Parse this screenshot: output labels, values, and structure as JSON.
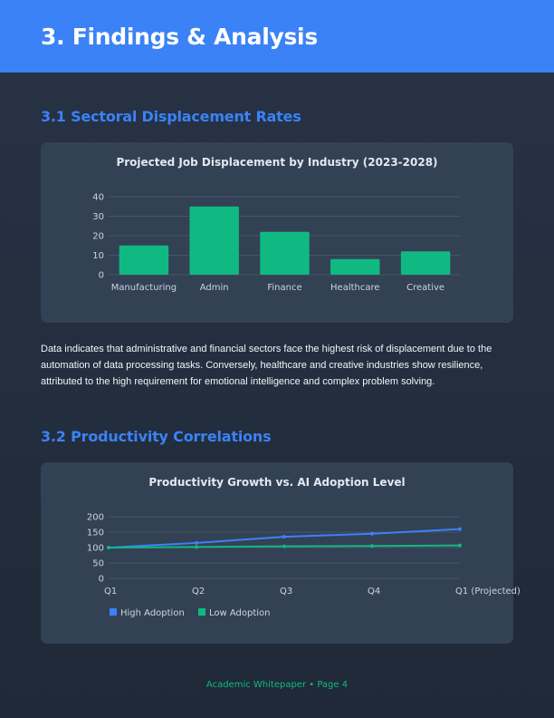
{
  "header": {
    "title": "3. Findings & Analysis"
  },
  "section1": {
    "heading": "3.1 Sectoral Displacement Rates",
    "body": "Data indicates that administrative and financial sectors face the highest risk of displacement due to the automation of data processing tasks. Conversely, healthcare and creative industries show resilience, attributed to the high requirement for emotional intelligence and complex problem solving."
  },
  "section2": {
    "heading": "3.2 Productivity Correlations"
  },
  "footer": {
    "text": "Academic Whitepaper • Page 4"
  },
  "colors": {
    "accent": "#3b82f6",
    "green": "#10b981"
  },
  "chart_data": [
    {
      "type": "bar",
      "title": "Projected Job Displacement by Industry (2023-2028)",
      "categories": [
        "Manufacturing",
        "Admin",
        "Finance",
        "Healthcare",
        "Creative"
      ],
      "values": [
        15,
        35,
        22,
        8,
        12
      ],
      "ylim": [
        0,
        40
      ],
      "yticks": [
        "0",
        "10",
        "20",
        "30",
        "40"
      ],
      "grid": true,
      "color": "#10b981"
    },
    {
      "type": "line",
      "title": "Productivity Growth vs. AI Adoption Level",
      "categories": [
        "Q1",
        "Q2",
        "Q3",
        "Q4",
        "Q1 (Projected)"
      ],
      "ylim": [
        0,
        200
      ],
      "yticks": [
        "0",
        "50",
        "100",
        "150",
        "200"
      ],
      "grid": true,
      "legend": "bottom-left",
      "series": [
        {
          "name": "High Adoption",
          "values": [
            100,
            115,
            135,
            145,
            160
          ],
          "color": "#3b82f6"
        },
        {
          "name": "Low Adoption",
          "values": [
            100,
            102,
            104,
            105,
            107
          ],
          "color": "#10b981"
        }
      ]
    }
  ]
}
